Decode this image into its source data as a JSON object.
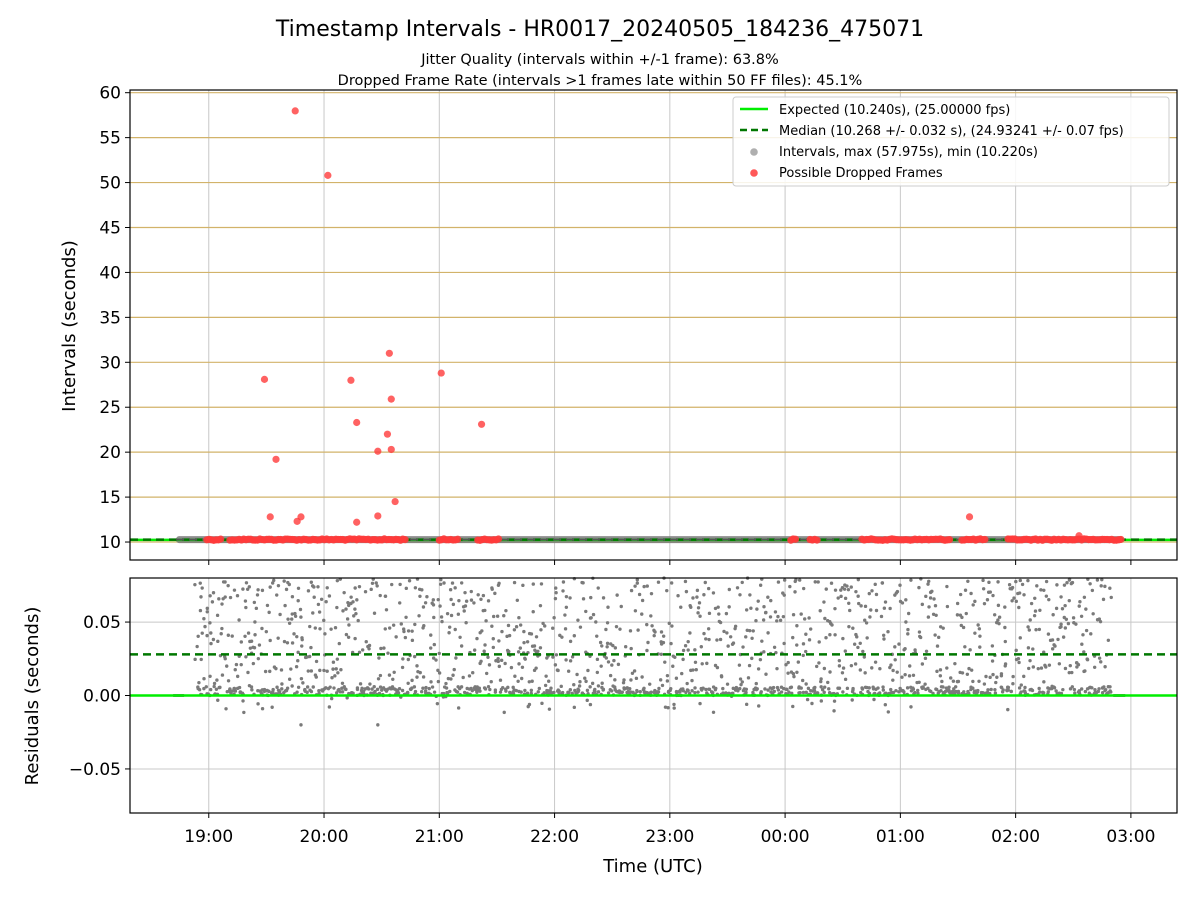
{
  "figure": {
    "title": "Timestamp Intervals - HR0017_20240505_184236_475071",
    "subtitle_1": "Jitter Quality (intervals within +/-1 frame): 63.8%",
    "subtitle_2": "Dropped Frame Rate (intervals >1 frames late within 50 FF files): 45.1%"
  },
  "colors": {
    "expected": "#00ee00",
    "median": "#007700",
    "intervals": "#7a7a7a",
    "dropped": "#ff3b3b",
    "hgrid_top": "#d2b36a",
    "grid": "#c8c8c8"
  },
  "chart_data": [
    {
      "type": "scatter",
      "panel": "top",
      "xlabel": "",
      "ylabel": "Intervals (seconds)",
      "xlim": [
        "18:19",
        "03:24"
      ],
      "ylim": [
        8,
        60.3
      ],
      "yticks": [
        10,
        15,
        20,
        25,
        30,
        35,
        40,
        45,
        50,
        55,
        60
      ],
      "xticks": [
        "19:00",
        "20:00",
        "21:00",
        "22:00",
        "23:00",
        "00:00",
        "01:00",
        "02:00",
        "03:00"
      ],
      "grid": true,
      "legend_placement": "top-right",
      "legend": [
        "Expected (10.240s), (25.00000 fps)",
        "Median (10.268 +/- 0.032 s), (24.93241 +/- 0.07 fps)",
        "Intervals, max (57.975s), min (10.220s)",
        "Possible Dropped Frames"
      ],
      "lines": {
        "expected": 10.24,
        "median": 10.268
      },
      "series": [
        {
          "name": "Intervals, max (57.975s), min (10.220s)",
          "time_range": [
            "18:43",
            "02:56"
          ],
          "typical_value": 10.27
        },
        {
          "name": "Possible Dropped Frames",
          "points": [
            {
              "t": "19:29",
              "y": 28.1
            },
            {
              "t": "19:32",
              "y": 12.8
            },
            {
              "t": "19:35",
              "y": 19.2
            },
            {
              "t": "19:45",
              "y": 57.975
            },
            {
              "t": "19:46",
              "y": 12.3
            },
            {
              "t": "19:48",
              "y": 12.8
            },
            {
              "t": "20:02",
              "y": 50.8
            },
            {
              "t": "20:14",
              "y": 28.0
            },
            {
              "t": "20:17",
              "y": 23.3
            },
            {
              "t": "20:17",
              "y": 12.2
            },
            {
              "t": "20:28",
              "y": 20.1
            },
            {
              "t": "20:28",
              "y": 12.9
            },
            {
              "t": "20:33",
              "y": 22.0
            },
            {
              "t": "20:34",
              "y": 31.0
            },
            {
              "t": "20:35",
              "y": 25.9
            },
            {
              "t": "20:35",
              "y": 20.3
            },
            {
              "t": "20:37",
              "y": 14.5
            },
            {
              "t": "21:01",
              "y": 28.8
            },
            {
              "t": "21:22",
              "y": 23.1
            },
            {
              "t": "01:36",
              "y": 12.8
            },
            {
              "t": "02:33",
              "y": 10.7
            }
          ],
          "clusters_near_10_3": [
            [
              "18:59",
              "19:07"
            ],
            [
              "19:11",
              "20:43"
            ],
            [
              "21:00",
              "21:10"
            ],
            [
              "21:20",
              "21:32"
            ],
            [
              "00:03",
              "00:06"
            ],
            [
              "00:13",
              "00:17"
            ],
            [
              "00:40",
              "01:26"
            ],
            [
              "01:32",
              "01:45"
            ],
            [
              "01:56",
              "02:56"
            ]
          ]
        }
      ]
    },
    {
      "type": "scatter",
      "panel": "bottom",
      "xlabel": "Time (UTC)",
      "ylabel": "Residuals (seconds)",
      "xlim": [
        "18:19",
        "03:24"
      ],
      "ylim": [
        -0.08,
        0.08
      ],
      "yticks": [
        -0.05,
        0.0,
        0.05
      ],
      "ytick_labels": [
        "−0.05",
        "0.00",
        "0.05"
      ],
      "xticks": [
        "19:00",
        "20:00",
        "21:00",
        "22:00",
        "23:00",
        "00:00",
        "01:00",
        "02:00",
        "03:00"
      ],
      "grid": true,
      "lines": {
        "expected": 0.0,
        "median": 0.028
      },
      "series": [
        {
          "name": "Intervals",
          "time_range": [
            "18:43",
            "02:56"
          ],
          "residual_range": [
            -0.02,
            0.08
          ]
        }
      ]
    }
  ]
}
